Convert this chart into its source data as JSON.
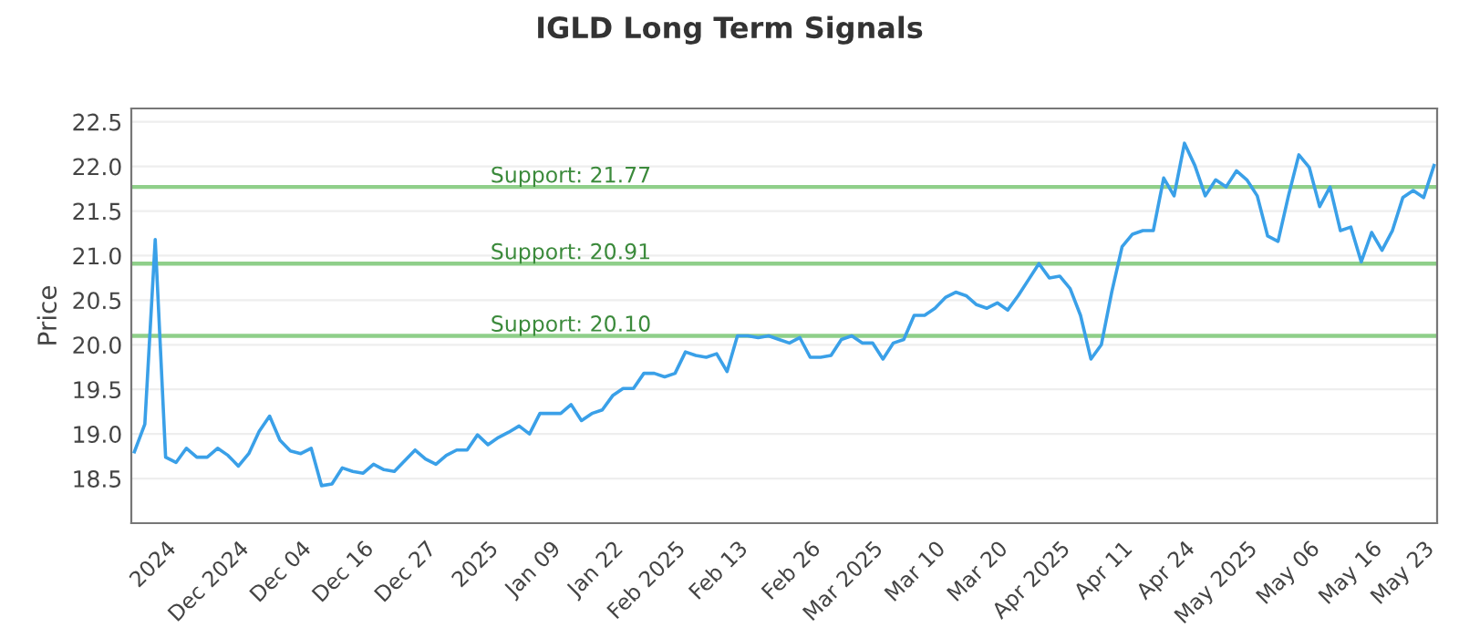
{
  "chart_data": {
    "type": "line",
    "title": "IGLD Long Term Signals",
    "ylabel": "Price",
    "categories": [
      null,
      null,
      null,
      "2024",
      null,
      null,
      null,
      null,
      null,
      null,
      "Dec 2024",
      null,
      null,
      null,
      null,
      null,
      "Dec 04",
      null,
      null,
      null,
      null,
      null,
      "Dec 16",
      null,
      null,
      null,
      null,
      null,
      "Dec 27",
      null,
      null,
      null,
      null,
      null,
      "2025",
      null,
      null,
      null,
      null,
      null,
      "Jan 09",
      null,
      null,
      null,
      null,
      null,
      "Jan 22",
      null,
      null,
      null,
      null,
      null,
      "Feb 2025",
      null,
      null,
      null,
      null,
      null,
      "Feb 13",
      null,
      null,
      null,
      null,
      null,
      null,
      "Feb 26",
      null,
      null,
      null,
      null,
      null,
      "Mar 2025",
      null,
      null,
      null,
      null,
      null,
      "Mar 10",
      null,
      null,
      null,
      null,
      null,
      "Mar 20",
      null,
      null,
      null,
      null,
      null,
      "Apr 2025",
      null,
      null,
      null,
      null,
      null,
      "Apr 11",
      null,
      null,
      null,
      null,
      null,
      "Apr 24",
      null,
      null,
      null,
      null,
      null,
      "May 2025",
      null,
      null,
      null,
      null,
      null,
      "May 06",
      null,
      null,
      null,
      null,
      null,
      "May 16",
      null,
      null,
      null,
      null,
      "May 23",
      null
    ],
    "series": [
      {
        "color": "#3aa0e8",
        "values": [
          18.8,
          19.11,
          21.18,
          18.74,
          18.68,
          18.84,
          18.74,
          18.74,
          18.84,
          18.76,
          18.64,
          18.78,
          19.03,
          19.2,
          18.93,
          18.81,
          18.78,
          18.84,
          18.42,
          18.44,
          18.62,
          18.58,
          18.56,
          18.66,
          18.6,
          18.58,
          18.7,
          18.82,
          18.72,
          18.66,
          18.76,
          18.82,
          18.82,
          18.99,
          18.88,
          18.96,
          19.02,
          19.09,
          19.0,
          19.23,
          19.23,
          19.23,
          19.33,
          19.15,
          19.23,
          19.27,
          19.43,
          19.51,
          19.51,
          19.68,
          19.68,
          19.64,
          19.68,
          19.92,
          19.88,
          19.86,
          19.9,
          19.7,
          20.1,
          20.1,
          20.08,
          20.1,
          20.06,
          20.02,
          20.08,
          19.86,
          19.86,
          19.88,
          20.06,
          20.1,
          20.02,
          20.02,
          19.84,
          20.02,
          20.06,
          20.33,
          20.33,
          20.41,
          20.53,
          20.59,
          20.55,
          20.45,
          20.41,
          20.47,
          20.39,
          20.55,
          20.73,
          20.91,
          20.75,
          20.77,
          20.63,
          20.33,
          19.84,
          20.0,
          20.59,
          21.1,
          21.24,
          21.28,
          21.28,
          21.87,
          21.67,
          22.26,
          22.01,
          21.67,
          21.85,
          21.77,
          21.95,
          21.85,
          21.67,
          21.22,
          21.16,
          21.67,
          22.13,
          21.99,
          21.55,
          21.77,
          21.28,
          21.32,
          20.93,
          21.26,
          21.06,
          21.28,
          21.65,
          21.73,
          21.65,
          22.01
        ]
      }
    ],
    "ylim": [
      18.0,
      22.65
    ],
    "yticks": [
      {
        "value": 18.5,
        "label": "18.5"
      },
      {
        "value": 19.0,
        "label": "19.0"
      },
      {
        "value": 19.5,
        "label": "19.5"
      },
      {
        "value": 20.0,
        "label": "20.0"
      },
      {
        "value": 20.5,
        "label": "20.5"
      },
      {
        "value": 21.0,
        "label": "21.0"
      },
      {
        "value": 21.5,
        "label": "21.5"
      },
      {
        "value": 22.0,
        "label": "22.0"
      },
      {
        "value": 22.5,
        "label": "22.5"
      }
    ],
    "grid": "y",
    "ref_lines": [
      {
        "axis": "y",
        "value": 21.77,
        "label": "Support: 21.77",
        "color": "#8fcf8a"
      },
      {
        "axis": "y",
        "value": 20.91,
        "label": "Support: 20.91",
        "color": "#8fcf8a"
      },
      {
        "axis": "y",
        "value": 20.1,
        "label": "Support: 20.10",
        "color": "#8fcf8a"
      }
    ]
  }
}
